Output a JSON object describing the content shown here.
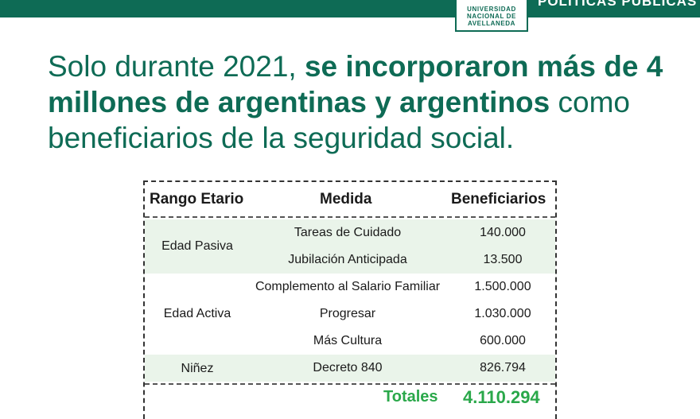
{
  "header": {
    "institution_lines": [
      "UNIVERSIDAD",
      "NACIONAL DE",
      "AVELLANEDA"
    ],
    "section": "POLÍTICAS PÚBLICAS"
  },
  "headline": {
    "part1": "Solo durante 2021, ",
    "part2_bold": "se incorporaron más de 4 millones de argentinas y argentinos",
    "part3": " como beneficiarios de la seguridad social."
  },
  "table": {
    "headers": [
      "Rango Etario",
      "Medida",
      "Beneficiarios"
    ],
    "groups": [
      {
        "range": "Edad Pasiva"
      },
      {
        "range": "Edad Activa"
      },
      {
        "range": "Niñez"
      }
    ],
    "rows": [
      {
        "medida": "Tareas de Cuidado",
        "beneficiarios": "140.000"
      },
      {
        "medida": "Jubilación Anticipada",
        "beneficiarios": "13.500"
      },
      {
        "medida": "Complemento al Salario Familiar",
        "beneficiarios": "1.500.000"
      },
      {
        "medida": "Progresar",
        "beneficiarios": "1.030.000"
      },
      {
        "medida": "Más Cultura",
        "beneficiarios": "600.000"
      },
      {
        "medida": "Decreto 840",
        "beneficiarios": "826.794"
      }
    ],
    "totals_label": "Totales",
    "totals_value": "4.110.294"
  },
  "colors": {
    "brand_green": "#0e6b55",
    "totals_green": "#2aa84a",
    "row_shade": "#eaf4ea"
  }
}
